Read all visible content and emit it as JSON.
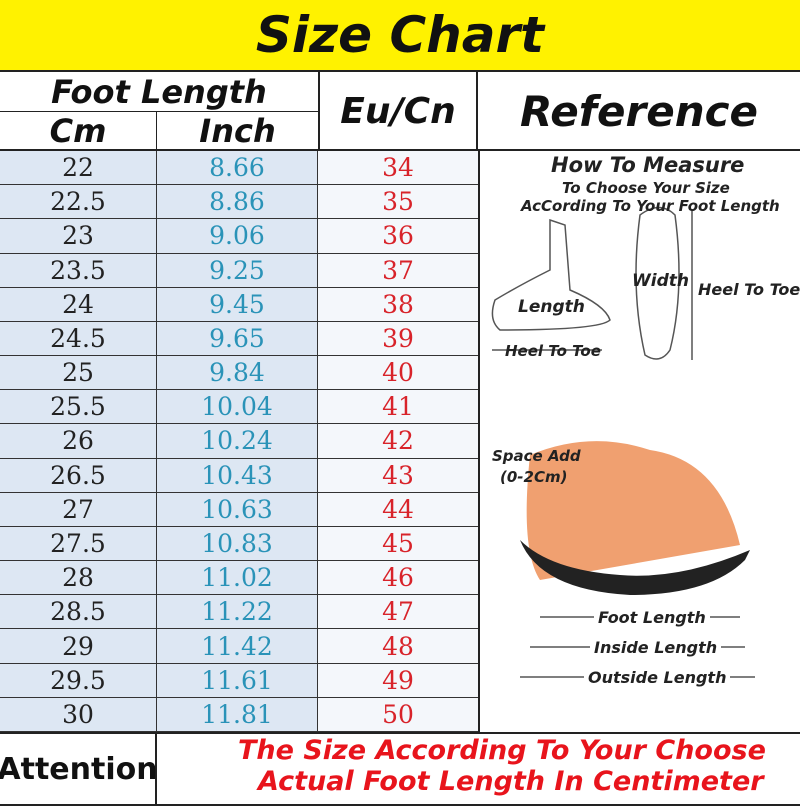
{
  "header": {
    "title": "Size Chart"
  },
  "table": {
    "columns": {
      "group": "Foot Length",
      "cm": "Cm",
      "inch": "Inch",
      "eu": "Eu/Cn",
      "reference": "Reference"
    },
    "rows": [
      [
        "22",
        "8.66",
        "34"
      ],
      [
        "22.5",
        "8.86",
        "35"
      ],
      [
        "23",
        "9.06",
        "36"
      ],
      [
        "23.5",
        "9.25",
        "37"
      ],
      [
        "24",
        "9.45",
        "38"
      ],
      [
        "24.5",
        "9.65",
        "39"
      ],
      [
        "25",
        "9.84",
        "40"
      ],
      [
        "25.5",
        "10.04",
        "41"
      ],
      [
        "26",
        "10.24",
        "42"
      ],
      [
        "26.5",
        "10.43",
        "43"
      ],
      [
        "27",
        "10.63",
        "44"
      ],
      [
        "27.5",
        "10.83",
        "45"
      ],
      [
        "28",
        "11.02",
        "46"
      ],
      [
        "28.5",
        "11.22",
        "47"
      ],
      [
        "29",
        "11.42",
        "48"
      ],
      [
        "29.5",
        "11.61",
        "49"
      ],
      [
        "30",
        "11.81",
        "50"
      ]
    ]
  },
  "reference": {
    "title": "How To Measure",
    "subtitle": [
      "To Choose Your Size",
      "AcCording To Your Foot Length"
    ],
    "side_labels": {
      "length": "Length",
      "heel_to_toe": "Heel To Toe"
    },
    "sole_labels": {
      "width": "Width",
      "heel_to_toe": "Heel To Toe"
    },
    "space": [
      "Space Add",
      "(0-2Cm)"
    ],
    "lengths": [
      "Foot Length",
      "Inside Length",
      "Outside Length"
    ]
  },
  "attention": {
    "label": "Attention",
    "text": [
      "The Size According To Your Choose",
      "Actual Foot Length In Centimeter"
    ]
  }
}
